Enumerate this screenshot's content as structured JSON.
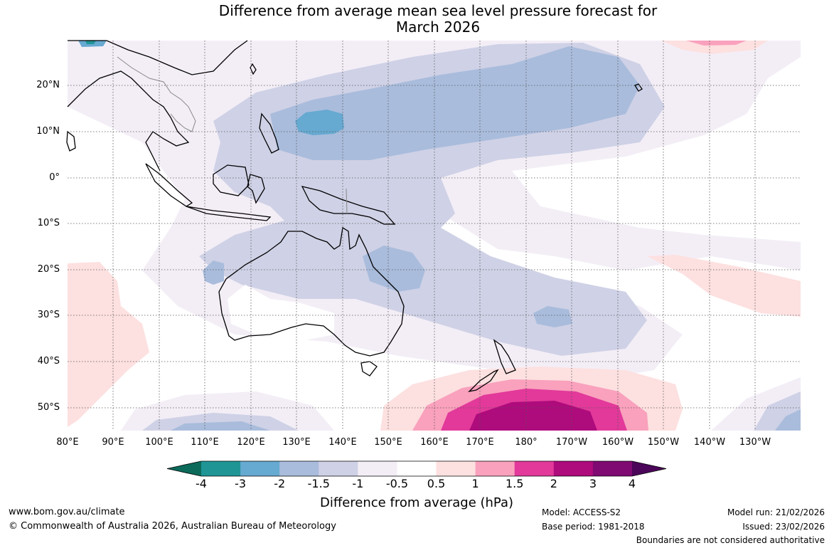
{
  "title_line1": "Difference from average mean sea level pressure forecast for",
  "title_line2": "March 2026",
  "lat_labels": [
    "20°N",
    "10°N",
    "0°",
    "10°S",
    "20°S",
    "30°S",
    "40°S",
    "50°S"
  ],
  "lon_labels": [
    "80°E",
    "90°E",
    "100°E",
    "110°E",
    "120°E",
    "130°E",
    "140°E",
    "150°E",
    "160°E",
    "170°E",
    "180°",
    "170°W",
    "160°W",
    "150°W",
    "140°W",
    "130°W"
  ],
  "colorbar": {
    "levels": [
      "-4",
      "-3",
      "-2",
      "-1.5",
      "-1",
      "-0.5",
      "0.5",
      "1",
      "1.5",
      "2",
      "3",
      "4"
    ],
    "colors": [
      "#0b6a5a",
      "#1f9596",
      "#66a9d1",
      "#a9bcdc",
      "#cfd1e6",
      "#f3eef6",
      "#ffffff",
      "#fde0e0",
      "#f9a1bd",
      "#e2399a",
      "#ae0b7c",
      "#7e0a72",
      "#4b0659"
    ],
    "title": "Difference from average (hPa)"
  },
  "footer": {
    "website": "www.bom.gov.au/climate",
    "copyright": "© Commonwealth of Australia 2026, Australian Bureau of Meteorology",
    "model": "Model: ACCESS-S2",
    "base_period": "Base period: 1981-2018",
    "model_run": "Model run: 21/02/2026",
    "issued": "Issued: 23/02/2026",
    "disclaimer": "Boundaries are not considered authoritative"
  }
}
